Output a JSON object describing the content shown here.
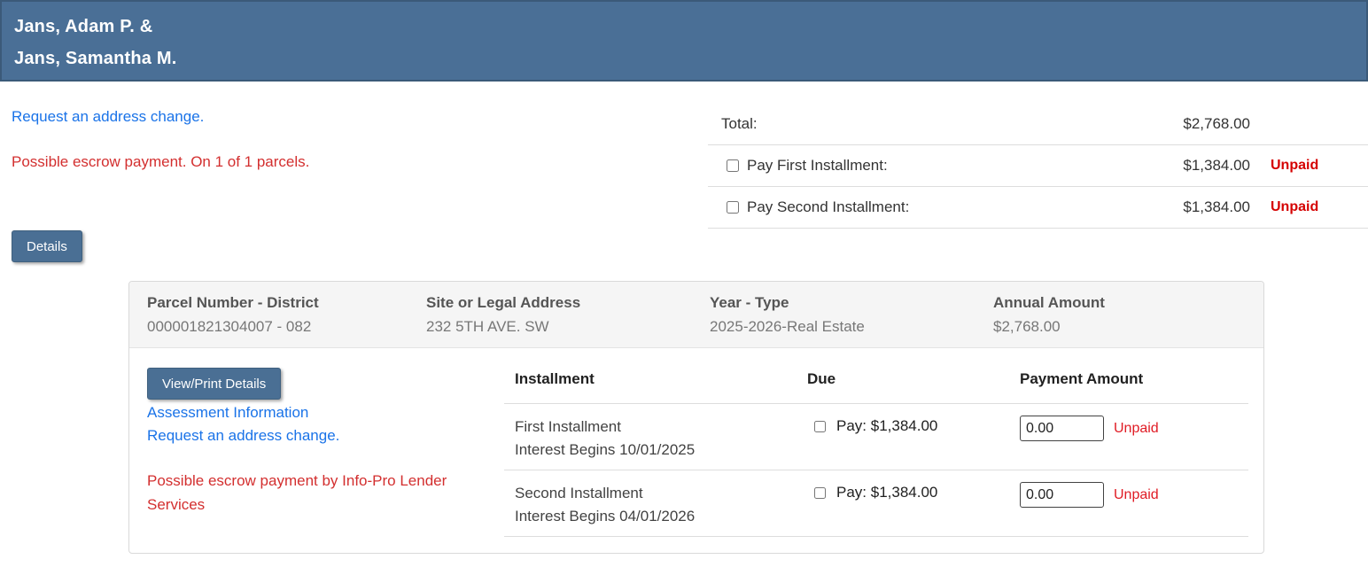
{
  "colors": {
    "header_bg": "#4a6f96",
    "header_border": "#3b5a79",
    "button_bg": "#4a6f94",
    "link_blue": "#1a73e8",
    "alert_red": "#d32f2f",
    "unpaid_red": "#d50000",
    "divider": "#dddddd",
    "panel_header_bg": "#f5f5f5"
  },
  "taxpayer": {
    "name_line1": "Jans, Adam P. &",
    "name_line2": "Jans, Samantha M."
  },
  "top_links": {
    "address_change": "Request an address change.",
    "escrow_alert": "Possible escrow payment. On 1 of 1 parcels."
  },
  "summary": {
    "total_label": "Total:",
    "total_amount": "$2,768.00",
    "rows": [
      {
        "label": "Pay First Installment:",
        "amount": "$1,384.00",
        "status": "Unpaid"
      },
      {
        "label": "Pay Second Installment:",
        "amount": "$1,384.00",
        "status": "Unpaid"
      }
    ]
  },
  "details_button_label": "Details",
  "parcel": {
    "parcel_number_header": "Parcel Number - District",
    "parcel_number_value": "000001821304007 - 082",
    "address_header": "Site or Legal Address",
    "address_value": "232 5TH AVE. SW",
    "year_type_header": "Year - Type",
    "year_type_value": "2025-2026-Real Estate",
    "annual_amount_header": "Annual Amount",
    "annual_amount_value": "$2,768.00",
    "view_print_button_label": "View/Print Details",
    "assessment_link": "Assessment Information",
    "address_change_link": "Request an address change.",
    "escrow_alert": "Possible escrow payment by Info-Pro Lender Services"
  },
  "installments": {
    "columns": {
      "installment": "Installment",
      "due": "Due",
      "payment": "Payment Amount"
    },
    "rows": [
      {
        "name": "First Installment",
        "interest_note": "Interest Begins 10/01/2025",
        "pay_label": "Pay: $1,384.00",
        "amount_value": "0.00",
        "status": "Unpaid"
      },
      {
        "name": "Second Installment",
        "interest_note": "Interest Begins 04/01/2026",
        "pay_label": "Pay: $1,384.00",
        "amount_value": "0.00",
        "status": "Unpaid"
      }
    ]
  }
}
